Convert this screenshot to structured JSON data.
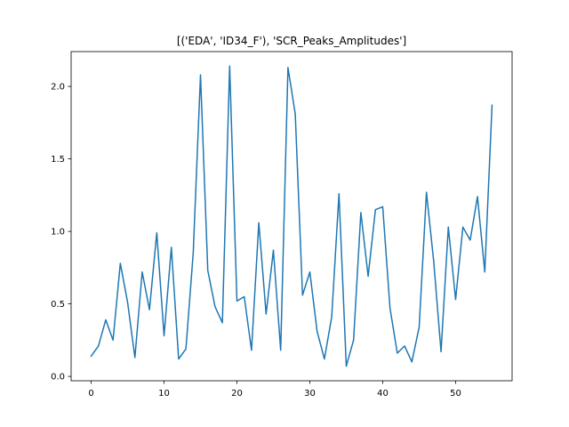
{
  "chart_data": {
    "type": "line",
    "title": "[('EDA', 'ID34_F'), 'SCR_Peaks_Amplitudes']",
    "xlabel": "",
    "ylabel": "",
    "xlim": [
      -2.75,
      57.75
    ],
    "ylim": [
      -0.03,
      2.24
    ],
    "grid": false,
    "xticks": [
      0,
      10,
      20,
      30,
      40,
      50
    ],
    "yticks": [
      0.0,
      0.5,
      1.0,
      1.5,
      2.0
    ],
    "xtick_labels": [
      "0",
      "10",
      "20",
      "30",
      "40",
      "50"
    ],
    "ytick_labels": [
      "0.0",
      "0.5",
      "1.0",
      "1.5",
      "2.0"
    ],
    "series": [
      {
        "color": "#1f77b4",
        "x": [
          0,
          1,
          2,
          3,
          4,
          5,
          6,
          7,
          8,
          9,
          10,
          11,
          12,
          13,
          14,
          15,
          16,
          17,
          18,
          19,
          20,
          21,
          22,
          23,
          24,
          25,
          26,
          27,
          28,
          29,
          30,
          31,
          32,
          33,
          34,
          35,
          36,
          37,
          38,
          39,
          40,
          41,
          42,
          43,
          44,
          45,
          46,
          47,
          48,
          49,
          50,
          51,
          52,
          53,
          54,
          55
        ],
        "values": [
          0.14,
          0.21,
          0.39,
          0.25,
          0.78,
          0.51,
          0.13,
          0.72,
          0.46,
          0.99,
          0.28,
          0.89,
          0.12,
          0.19,
          0.85,
          2.08,
          0.73,
          0.48,
          0.37,
          2.14,
          0.52,
          0.55,
          0.18,
          1.06,
          0.43,
          0.87,
          0.18,
          2.13,
          1.81,
          0.56,
          0.72,
          0.31,
          0.12,
          0.41,
          1.26,
          0.07,
          0.25,
          1.13,
          0.69,
          1.15,
          1.17,
          0.47,
          0.16,
          0.21,
          0.1,
          0.34,
          1.27,
          0.79,
          0.17,
          1.03,
          0.53,
          1.03,
          0.94,
          1.24,
          0.72,
          1.87
        ]
      }
    ]
  }
}
